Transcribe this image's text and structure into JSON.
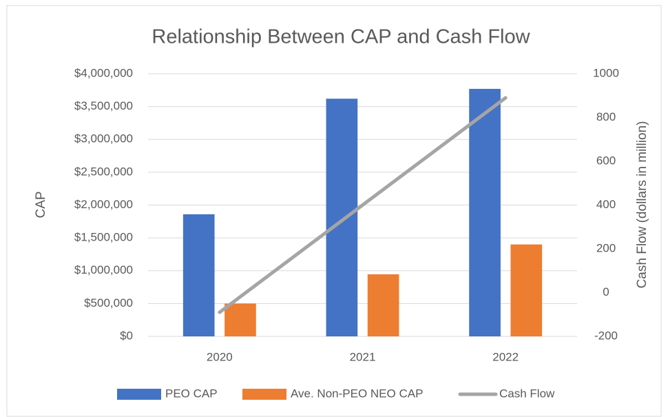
{
  "chart_data": {
    "type": "bar_line",
    "title": "Relationship Between CAP and Cash Flow",
    "y_label": "CAP",
    "y2_label": "Cash Flow (dollars in million)",
    "categories": [
      "2020",
      "2021",
      "2022"
    ],
    "series": [
      {
        "name": "PEO CAP",
        "color": "#4472c4",
        "type": "bar",
        "values": [
          1860000,
          3620000,
          3770000
        ]
      },
      {
        "name": "Ave. Non-PEO NEO CAP",
        "color": "#ed7d31",
        "type": "bar",
        "values": [
          500000,
          945000,
          1400000
        ]
      },
      {
        "name": "Cash Flow",
        "color": "#a5a5a5",
        "type": "line",
        "axis": "y2",
        "values": [
          -90,
          400,
          890
        ]
      }
    ],
    "ylim": [
      0,
      4000000
    ],
    "yticks": [
      {
        "value": 0,
        "label": "$0"
      },
      {
        "value": 500000,
        "label": "$500,000"
      },
      {
        "value": 1000000,
        "label": "$1,000,000"
      },
      {
        "value": 1500000,
        "label": "$1,500,000"
      },
      {
        "value": 2000000,
        "label": "$2,000,000"
      },
      {
        "value": 2500000,
        "label": "$2,500,000"
      },
      {
        "value": 3000000,
        "label": "$3,000,000"
      },
      {
        "value": 3500000,
        "label": "$3,500,000"
      },
      {
        "value": 4000000,
        "label": "$4,000,000"
      }
    ],
    "y2lim": [
      -200,
      1000
    ],
    "y2ticks": [
      -200,
      0,
      200,
      400,
      600,
      800,
      1000
    ],
    "grid": true,
    "legend": "bottom"
  }
}
